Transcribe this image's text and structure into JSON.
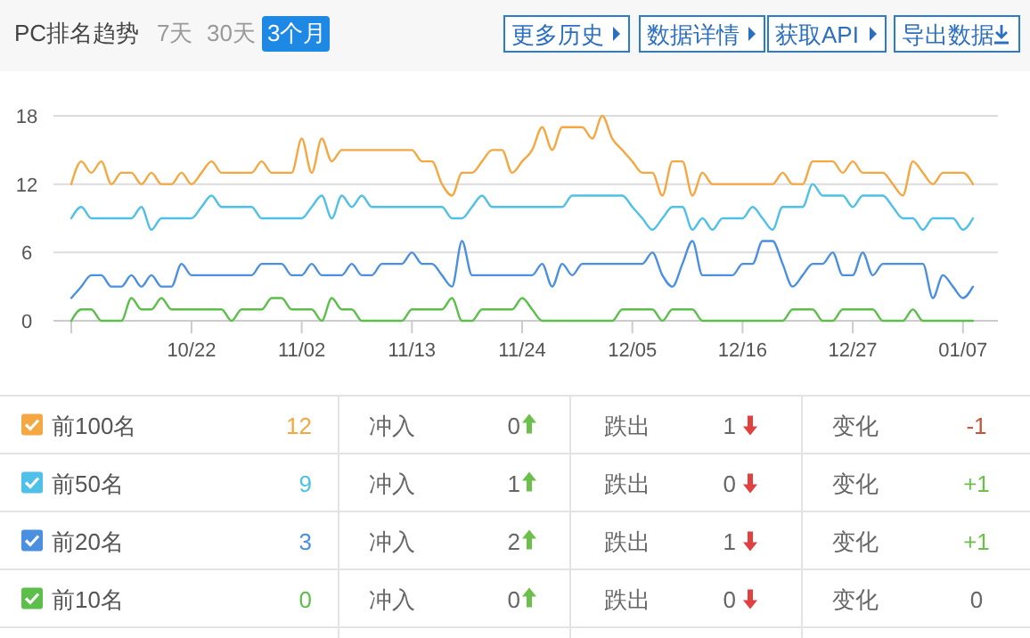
{
  "chart_data": [
    {
      "type": "line",
      "title": "PC排名趋势",
      "ylim": [
        0,
        18
      ],
      "yticks": [
        0,
        6,
        12,
        18
      ],
      "grid": "y",
      "marker": "none",
      "line_style": "solid",
      "categories": [
        null,
        null,
        null,
        null,
        null,
        null,
        null,
        null,
        null,
        null,
        null,
        null,
        "10/22",
        null,
        null,
        null,
        null,
        null,
        null,
        null,
        null,
        null,
        null,
        "11/02",
        null,
        null,
        null,
        null,
        null,
        null,
        null,
        null,
        null,
        null,
        "11/13",
        null,
        null,
        null,
        null,
        null,
        null,
        null,
        null,
        null,
        null,
        "11/24",
        null,
        null,
        null,
        null,
        null,
        null,
        null,
        null,
        null,
        null,
        "12/05",
        null,
        null,
        null,
        null,
        null,
        null,
        null,
        null,
        null,
        null,
        "12/16",
        null,
        null,
        null,
        null,
        null,
        null,
        null,
        null,
        null,
        null,
        "12/27",
        null,
        null,
        null,
        null,
        null,
        null,
        null,
        null,
        null,
        null,
        "01/07",
        null
      ],
      "series": [
        {
          "color": "#f5a742",
          "values": [
            12,
            14,
            13,
            14,
            12,
            13,
            13,
            12,
            13,
            12,
            12,
            13,
            12,
            13,
            14,
            13,
            13,
            13,
            13,
            14,
            13,
            13,
            13,
            16,
            13,
            16,
            14,
            15,
            15,
            15,
            15,
            15,
            15,
            15,
            15,
            14,
            14,
            12,
            11,
            13,
            13,
            14,
            15,
            15,
            13,
            14,
            15,
            17,
            15,
            17,
            17,
            17,
            16,
            18,
            16,
            15,
            14,
            13,
            13,
            11,
            14,
            14,
            11,
            13,
            12,
            12,
            12,
            12,
            12,
            12,
            12,
            13,
            12,
            12,
            14,
            14,
            14,
            13,
            14,
            13,
            13,
            13,
            12,
            11,
            14,
            13,
            12,
            13,
            13,
            13,
            12
          ]
        },
        {
          "color": "#4fc0e8",
          "values": [
            9,
            10,
            9,
            9,
            9,
            9,
            9,
            10,
            8,
            9,
            9,
            9,
            9,
            10,
            11,
            10,
            10,
            10,
            10,
            9,
            9,
            9,
            9,
            9,
            10,
            11,
            9,
            11,
            10,
            11,
            10,
            10,
            10,
            10,
            10,
            10,
            10,
            10,
            9,
            9,
            10,
            11,
            10,
            10,
            10,
            10,
            10,
            10,
            10,
            10,
            11,
            11,
            11,
            11,
            11,
            11,
            10,
            9,
            8,
            9,
            10,
            10,
            8,
            9,
            8,
            9,
            9,
            9,
            10,
            9,
            8,
            10,
            10,
            10,
            12,
            11,
            11,
            11,
            10,
            11,
            11,
            11,
            10,
            9,
            9,
            8,
            9,
            9,
            9,
            8,
            9
          ]
        },
        {
          "color": "#4a8fe0",
          "values": [
            2,
            3,
            4,
            4,
            3,
            3,
            4,
            3,
            4,
            3,
            3,
            5,
            4,
            4,
            4,
            4,
            4,
            4,
            4,
            5,
            5,
            5,
            4,
            4,
            5,
            4,
            4,
            4,
            5,
            4,
            4,
            5,
            5,
            5,
            6,
            5,
            5,
            4,
            3,
            7,
            4,
            4,
            4,
            4,
            4,
            4,
            4,
            5,
            3,
            5,
            4,
            5,
            5,
            5,
            5,
            5,
            5,
            5,
            6,
            4,
            3,
            5,
            7,
            4,
            4,
            4,
            4,
            5,
            5,
            7,
            7,
            5,
            3,
            4,
            5,
            5,
            6,
            4,
            4,
            6,
            4,
            5,
            5,
            5,
            5,
            5,
            2,
            4,
            3,
            2,
            3
          ]
        },
        {
          "color": "#5cbf4a",
          "values": [
            0,
            1,
            1,
            0,
            0,
            0,
            2,
            1,
            1,
            2,
            1,
            1,
            1,
            1,
            1,
            1,
            0,
            1,
            1,
            1,
            2,
            2,
            1,
            1,
            1,
            0,
            2,
            1,
            1,
            0,
            0,
            0,
            0,
            0,
            1,
            1,
            1,
            1,
            2,
            0,
            0,
            1,
            1,
            1,
            1,
            2,
            1,
            0,
            0,
            0,
            0,
            0,
            0,
            0,
            0,
            1,
            1,
            1,
            1,
            0,
            1,
            1,
            1,
            0,
            0,
            0,
            0,
            0,
            0,
            0,
            0,
            0,
            1,
            1,
            1,
            0,
            0,
            1,
            1,
            1,
            1,
            0,
            0,
            0,
            1,
            0,
            0,
            0,
            0,
            0,
            0
          ]
        }
      ]
    },
    {
      "type": "other",
      "categories": [
        "7天",
        "30天",
        "3个月"
      ],
      "annotations": [
        "更多历史",
        "数据详情",
        "获取API",
        "导出数据"
      ]
    },
    {
      "type": "other",
      "categories": [
        "前100名",
        "前50名",
        "前20名",
        "前10名"
      ],
      "colors": [
        "#f5a742",
        "#4fc0e8",
        "#4a8fe0",
        "#5cbf4a"
      ],
      "cell_labels": [
        [
          "12",
          "冲入",
          "0",
          "跌出",
          "1",
          "变化",
          "-1"
        ],
        [
          "9",
          "冲入",
          "1",
          "跌出",
          "0",
          "变化",
          "+1"
        ],
        [
          "3",
          "冲入",
          "2",
          "跌出",
          "1",
          "变化",
          "+1"
        ],
        [
          "0",
          "冲入",
          "0",
          "跌出",
          "0",
          "变化",
          "0"
        ]
      ]
    }
  ]
}
